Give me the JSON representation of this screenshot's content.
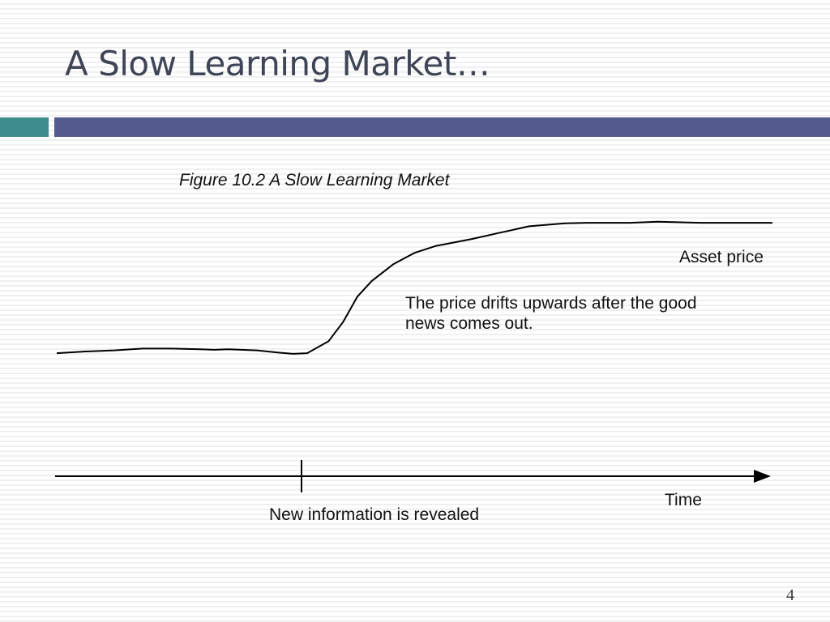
{
  "slide": {
    "title": "A Slow Learning Market…",
    "page_number": "4",
    "colors": {
      "accent_teal": "#3e8c8c",
      "accent_blue": "#525a8e",
      "title": "#3f4556"
    }
  },
  "chart_data": {
    "type": "line",
    "title": "Figure 10.2 A Slow Learning Market",
    "xlabel": "Time",
    "ylabel": "",
    "x": [
      0,
      4,
      8,
      12,
      16,
      20,
      22,
      24,
      28,
      31,
      33,
      35,
      38,
      40,
      42,
      44,
      47,
      50,
      53,
      58,
      62,
      66,
      71,
      74,
      80,
      84,
      90,
      96,
      100
    ],
    "y": [
      4,
      7,
      9,
      12,
      12,
      11,
      10,
      11,
      9,
      5,
      3,
      4,
      25,
      58,
      102,
      129,
      158,
      178,
      190,
      202,
      213,
      224,
      229,
      230,
      230,
      232,
      230,
      230,
      230
    ],
    "xlim": [
      0,
      100
    ],
    "ylim": [
      0,
      240
    ],
    "series": [
      {
        "name": "Asset price",
        "color": "#000000"
      }
    ],
    "event": {
      "x": 34.2,
      "label": "New information is revealed"
    },
    "annotation": "The price drifts upwards after the good news comes out.",
    "grid": false,
    "axis_ticks": false
  }
}
